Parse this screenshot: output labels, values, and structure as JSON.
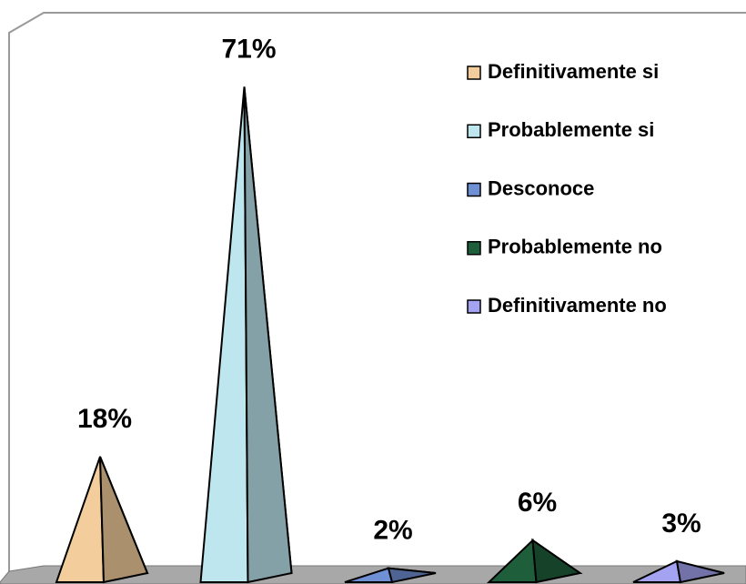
{
  "chart_data": {
    "type": "pyramid",
    "categories": [
      "Definitivamente si",
      "Probablemente si",
      "Desconoce",
      "Probablemente no",
      "Definitivamente no"
    ],
    "values": [
      18,
      71,
      2,
      6,
      3
    ],
    "value_labels": [
      "18%",
      "71%",
      "2%",
      "6%",
      "3%"
    ],
    "colors": [
      "#f3cd9c",
      "#bde6ee",
      "#6f90d4",
      "#1e5e3a",
      "#a3a3f2"
    ]
  }
}
